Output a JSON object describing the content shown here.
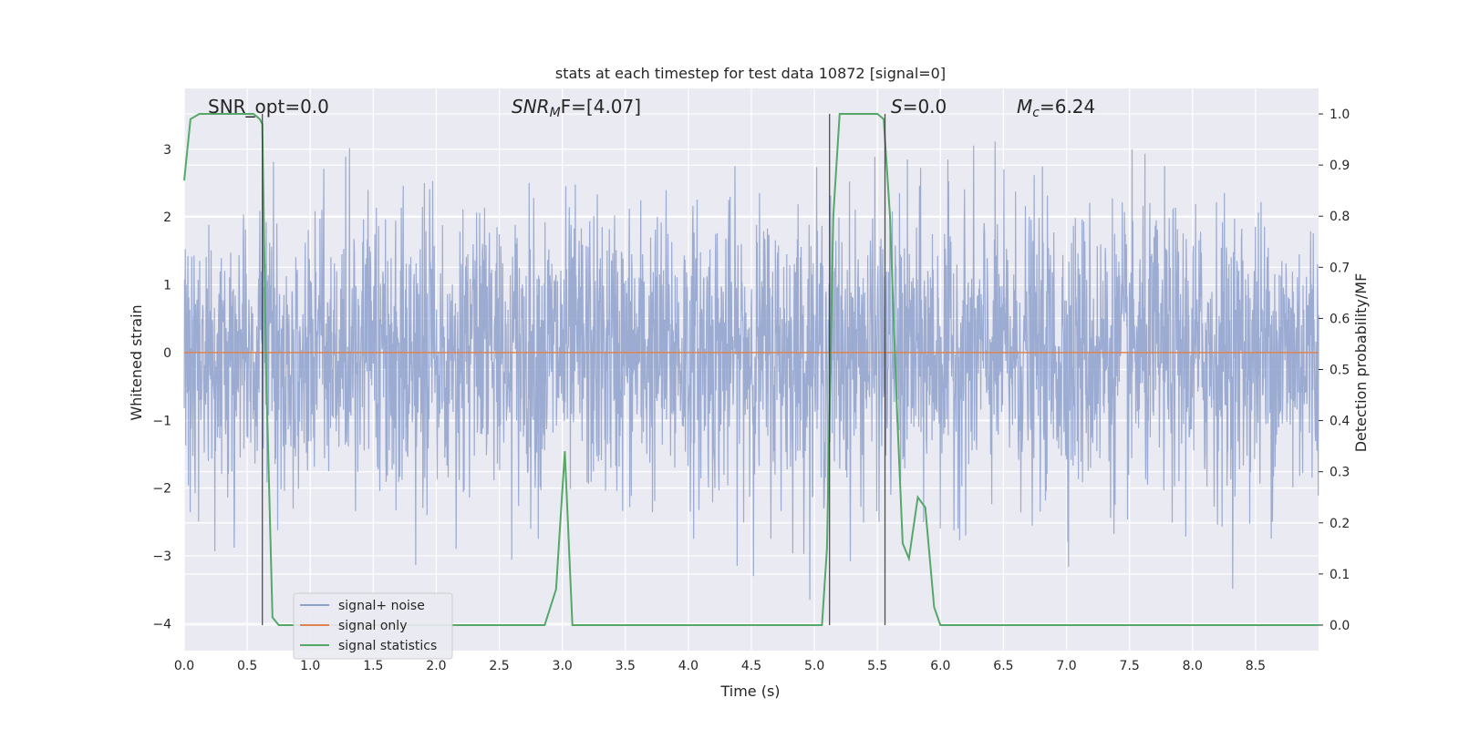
{
  "chart_data": {
    "type": "line",
    "title": "stats at each timestep for test data 10872 [signal=0]",
    "xlabel": "Time (s)",
    "ylabel": "Whitened strain",
    "y2label": "Detection probability/MF",
    "xlim": [
      0,
      9.0
    ],
    "ylim": [
      -4.4,
      3.9
    ],
    "y2lim": [
      -0.05,
      1.05
    ],
    "xticks": [
      "0.0",
      "0.5",
      "1.0",
      "1.5",
      "2.0",
      "2.5",
      "3.0",
      "3.5",
      "4.0",
      "4.5",
      "5.0",
      "5.5",
      "6.0",
      "6.5",
      "7.0",
      "7.5",
      "8.0",
      "8.5"
    ],
    "yticks": [
      "3",
      "2",
      "1",
      "0",
      "−1",
      "−2",
      "−3",
      "−4"
    ],
    "y2ticks": [
      "1.0",
      "0.9",
      "0.8",
      "0.7",
      "0.6",
      "0.5",
      "0.4",
      "0.3",
      "0.2",
      "0.1",
      "0.0"
    ],
    "grid": true,
    "legend_position": "lower-left",
    "annotations": {
      "snr_opt": "SNR_opt=0.0",
      "snr_mf_prefix": "SNR",
      "snr_mf_sub": "M",
      "snr_mf_rest": "F=[4.07]",
      "s_prefix": "S",
      "s_rest": "=0.0",
      "mc_prefix": "M",
      "mc_sub": "c",
      "mc_rest": "=6.24"
    },
    "series": [
      {
        "name": "signal+ noise",
        "color": "#8da0cb",
        "axis": "left",
        "description_values": "dense noise, amplitude ~ ±2.5 with spikes to ±3.6"
      },
      {
        "name": "signal only",
        "color": "#dd8452",
        "axis": "left",
        "x": [
          0,
          9.0
        ],
        "y": [
          0,
          0
        ]
      },
      {
        "name": "signal statistics",
        "color": "#55a868",
        "axis": "right",
        "x": [
          0.0,
          0.05,
          0.12,
          0.2,
          0.3,
          0.4,
          0.5,
          0.55,
          0.6,
          0.62,
          0.65,
          0.7,
          0.75,
          0.8,
          1.0,
          2.0,
          2.86,
          2.95,
          3.02,
          3.08,
          3.15,
          4.0,
          5.06,
          5.1,
          5.15,
          5.2,
          5.5,
          5.55,
          5.6,
          5.65,
          5.7,
          5.75,
          5.82,
          5.88,
          5.95,
          6.0,
          7.0,
          8.0,
          9.0
        ],
        "y": [
          0.87,
          0.99,
          1.0,
          1.0,
          1.0,
          1.0,
          1.0,
          1.0,
          0.99,
          0.98,
          0.5,
          0.015,
          0.0,
          0.0,
          0.0,
          0.0,
          0.0,
          0.07,
          0.34,
          0.0,
          0.0,
          0.0,
          0.0,
          0.15,
          0.8,
          1.0,
          1.0,
          0.99,
          0.8,
          0.45,
          0.16,
          0.13,
          0.25,
          0.23,
          0.035,
          0.0,
          0.0,
          0.0,
          0.0
        ]
      }
    ],
    "vertical_lines_x": [
      0.62,
      5.12,
      5.56
    ]
  }
}
